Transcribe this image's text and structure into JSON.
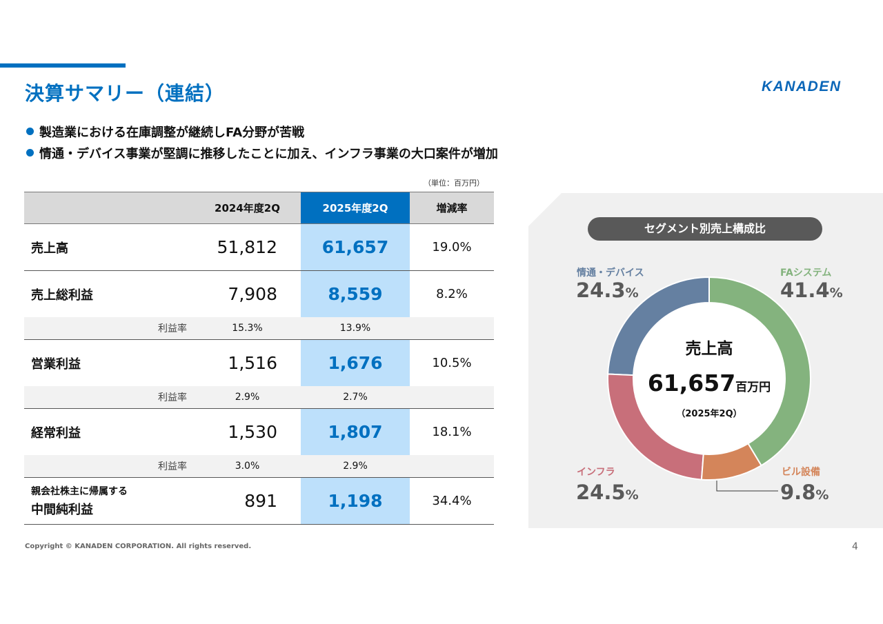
{
  "header": {
    "title": "決算サマリー（連結）",
    "logo_text": "KANADEN",
    "accent_color": "#0070c0"
  },
  "bullets": [
    "製造業における在庫調整が継続しFA分野が苦戦",
    "情通・デバイス事業が堅調に推移したことに加え、インフラ事業の大口案件が増加"
  ],
  "table": {
    "unit_note": "（単位：百万円）",
    "columns": [
      "",
      "2024年度2Q",
      "2025年度2Q",
      "増減率"
    ],
    "rows": [
      {
        "label": "売上高",
        "v2024": "51,812",
        "v2025": "61,657",
        "change": "19.0%"
      },
      {
        "label": "売上総利益",
        "v2024": "7,908",
        "v2025": "8,559",
        "change": "8.2%",
        "ratio": {
          "label": "利益率",
          "v2024": "15.3%",
          "v2025": "13.9%"
        }
      },
      {
        "label": "営業利益",
        "v2024": "1,516",
        "v2025": "1,676",
        "change": "10.5%",
        "ratio": {
          "label": "利益率",
          "v2024": "2.9%",
          "v2025": "2.7%"
        }
      },
      {
        "label": "経常利益",
        "v2024": "1,530",
        "v2025": "1,807",
        "change": "18.1%",
        "ratio": {
          "label": "利益率",
          "v2024": "3.0%",
          "v2025": "2.9%"
        }
      },
      {
        "label_small": "親会社株主に帰属する",
        "label": "中間純利益",
        "v2024": "891",
        "v2025": "1,198",
        "change": "34.4%"
      }
    ]
  },
  "chart_data": {
    "type": "pie",
    "title": "セグメント別売上構成比",
    "center": {
      "title": "売上高",
      "value": "61,657",
      "unit": "百万円",
      "period": "（2025年2Q）"
    },
    "segments": [
      {
        "name": "FAシステム",
        "value": 41.4,
        "pct_label": "41.4",
        "color": "#84b37e"
      },
      {
        "name": "ビル設備",
        "value": 9.8,
        "pct_label": "9.8",
        "color": "#d4855a"
      },
      {
        "name": "インフラ",
        "value": 24.5,
        "pct_label": "24.5",
        "color": "#c86f7a"
      },
      {
        "name": "情通・デバイス",
        "value": 24.3,
        "pct_label": "24.3",
        "color": "#6580a1"
      }
    ],
    "pct_suffix": "%"
  },
  "footer": {
    "copyright": "Copyright © KANADEN CORPORATION. All rights reserved.",
    "page_number": "4"
  }
}
